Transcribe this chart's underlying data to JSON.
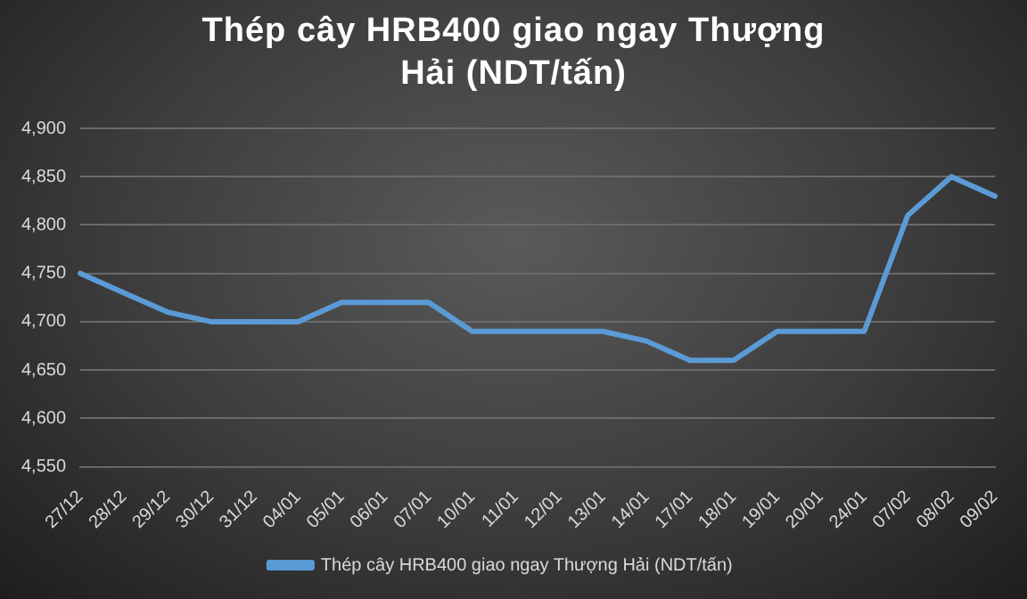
{
  "chart_data": {
    "type": "line",
    "title": "Thép cây HRB400 giao ngay Thượng Hải (NDT/tấn)",
    "categories": [
      "27/12",
      "28/12",
      "29/12",
      "30/12",
      "31/12",
      "04/01",
      "05/01",
      "06/01",
      "07/01",
      "10/01",
      "11/01",
      "12/01",
      "13/01",
      "14/01",
      "17/01",
      "18/01",
      "19/01",
      "20/01",
      "24/01",
      "07/02",
      "08/02",
      "09/02"
    ],
    "series": [
      {
        "name": "Thép cây HRB400 giao ngay Thượng Hải (NDT/tấn)",
        "color": "#5b9bd5",
        "values": [
          4750,
          4730,
          4710,
          4700,
          4700,
          4700,
          4720,
          4720,
          4720,
          4690,
          4690,
          4690,
          4690,
          4680,
          4660,
          4660,
          4690,
          4690,
          4690,
          4810,
          4850,
          4830
        ]
      }
    ],
    "ylim": [
      4550,
      4900
    ],
    "yticks": [
      {
        "value": 4550,
        "label": "4,550"
      },
      {
        "value": 4600,
        "label": "4,600"
      },
      {
        "value": 4650,
        "label": "4,650"
      },
      {
        "value": 4700,
        "label": "4,700"
      },
      {
        "value": 4750,
        "label": "4,750"
      },
      {
        "value": 4800,
        "label": "4,800"
      },
      {
        "value": 4850,
        "label": "4,850"
      },
      {
        "value": 4900,
        "label": "4,900"
      }
    ],
    "grid": "y",
    "legend": "bottom",
    "marker": "none",
    "line_style": "solid"
  }
}
